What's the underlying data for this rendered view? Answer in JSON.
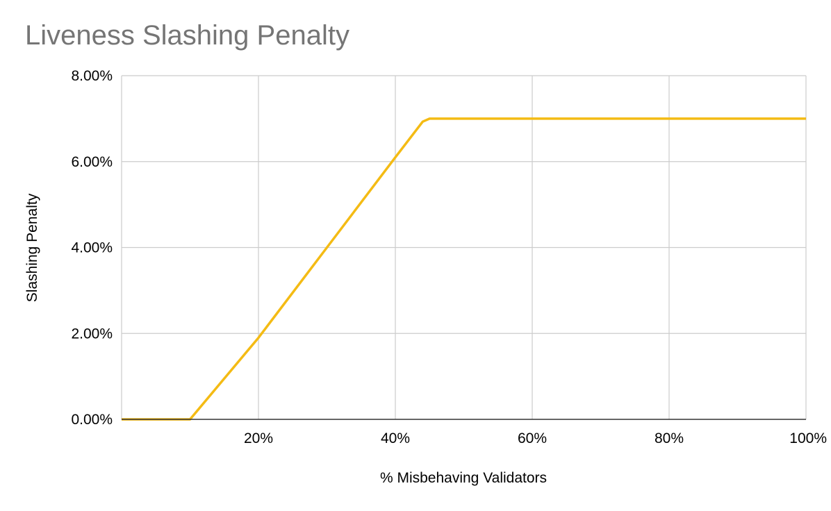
{
  "chart_data": {
    "type": "line",
    "title": "Liveness Slashing Penalty",
    "xlabel": "% Misbehaving Validators",
    "ylabel": "Slashing Penalty",
    "xlim": [
      0,
      100
    ],
    "ylim": [
      0,
      8
    ],
    "x_ticks": [
      {
        "value": 20,
        "label": "20%"
      },
      {
        "value": 40,
        "label": "40%"
      },
      {
        "value": 60,
        "label": "60%"
      },
      {
        "value": 80,
        "label": "80%"
      },
      {
        "value": 100,
        "label": "100%"
      }
    ],
    "y_ticks": [
      {
        "value": 0,
        "label": "0.00%"
      },
      {
        "value": 2,
        "label": "2.00%"
      },
      {
        "value": 4,
        "label": "4.00%"
      },
      {
        "value": 6,
        "label": "6.00%"
      },
      {
        "value": 8,
        "label": "8.00%"
      }
    ],
    "grid": true,
    "series": [
      {
        "color": "#f4bb14",
        "points": [
          {
            "x": 0,
            "y": 0
          },
          {
            "x": 10,
            "y": 0
          },
          {
            "x": 20,
            "y": 1.9
          },
          {
            "x": 30,
            "y": 4.0
          },
          {
            "x": 40,
            "y": 6.1
          },
          {
            "x": 44,
            "y": 6.93
          },
          {
            "x": 45,
            "y": 7.0
          },
          {
            "x": 60,
            "y": 7.0
          },
          {
            "x": 80,
            "y": 7.0
          },
          {
            "x": 100,
            "y": 7.0
          }
        ]
      }
    ]
  },
  "colors": {
    "title": "#757575",
    "grid": "#cccccc",
    "baseline": "#333333",
    "line": "#f4bb14"
  }
}
